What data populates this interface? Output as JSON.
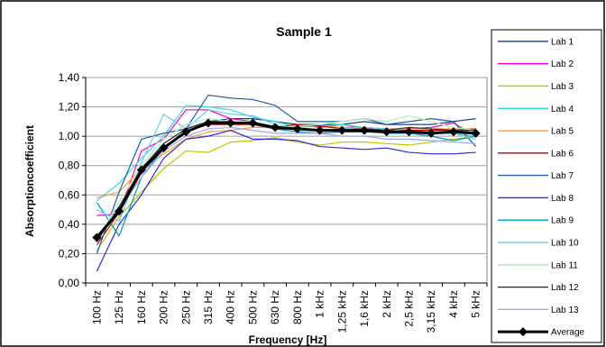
{
  "chart_data": {
    "type": "line",
    "title": "Sample 1",
    "xlabel": "Frequency [Hz]",
    "ylabel": "Absorptioncoefficient",
    "ylim": [
      0,
      1.4
    ],
    "yticks": [
      "0,00",
      "0,20",
      "0,40",
      "0,60",
      "0,80",
      "1,00",
      "1,20",
      "1,40"
    ],
    "grid": true,
    "legend_position": "right",
    "categories": [
      "100 Hz",
      "125 Hz",
      "160 Hz",
      "200 Hz",
      "250 Hz",
      "315 Hz",
      "400 Hz",
      "500 Hz",
      "630 Hz",
      "800 Hz",
      "1 kHz",
      "1,25 kHz",
      "1,6 kHz",
      "2 kHz",
      "2,5 kHz",
      "3,15 kHz",
      "4 kHz",
      "5 kHz"
    ],
    "series": [
      {
        "name": "Lab 1",
        "color": "#1f3c88",
        "values": [
          0.3,
          0.5,
          0.75,
          0.95,
          1.05,
          1.1,
          1.12,
          1.12,
          1.1,
          1.08,
          1.08,
          1.08,
          1.1,
          1.08,
          1.08,
          1.08,
          1.1,
          1.12
        ]
      },
      {
        "name": "Lab 2",
        "color": "#ff00cc",
        "values": [
          0.46,
          0.47,
          0.9,
          0.98,
          1.18,
          1.18,
          1.12,
          1.1,
          1.05,
          1.08,
          1.06,
          1.08,
          1.05,
          1.05,
          1.05,
          1.06,
          1.09,
          1.0
        ]
      },
      {
        "name": "Lab 3",
        "color": "#bcc400",
        "values": [
          0.22,
          0.45,
          0.62,
          0.78,
          0.9,
          0.89,
          0.96,
          0.97,
          0.99,
          0.96,
          0.94,
          0.96,
          0.96,
          0.95,
          0.94,
          0.96,
          0.98,
          1.0
        ]
      },
      {
        "name": "Lab 4",
        "color": "#33dddd",
        "values": [
          0.56,
          0.68,
          0.85,
          1.0,
          1.21,
          1.2,
          1.18,
          1.13,
          1.1,
          1.06,
          1.07,
          1.08,
          1.06,
          1.05,
          1.04,
          1.03,
          1.02,
          1.0
        ]
      },
      {
        "name": "Lab 5",
        "color": "#ff9933",
        "values": [
          0.58,
          0.62,
          0.78,
          0.88,
          0.98,
          1.03,
          1.04,
          1.06,
          1.06,
          1.07,
          1.07,
          1.06,
          1.06,
          1.05,
          1.05,
          1.05,
          1.05,
          1.05
        ]
      },
      {
        "name": "Lab 6",
        "color": "#c00000",
        "values": [
          0.26,
          0.48,
          0.75,
          0.92,
          1.03,
          1.08,
          1.08,
          1.08,
          1.06,
          1.08,
          1.07,
          1.05,
          1.05,
          1.04,
          1.04,
          1.04,
          1.04,
          1.05
        ]
      },
      {
        "name": "Lab 7",
        "color": "#1f5fa0",
        "values": [
          0.2,
          0.62,
          0.98,
          1.02,
          1.05,
          1.28,
          1.26,
          1.25,
          1.21,
          1.1,
          1.1,
          1.1,
          1.12,
          1.08,
          1.1,
          1.12,
          1.1,
          0.93
        ]
      },
      {
        "name": "Lab 8",
        "color": "#2b2bd6",
        "values": [
          0.08,
          0.4,
          0.6,
          0.85,
          0.98,
          1.0,
          1.04,
          0.98,
          0.98,
          0.97,
          0.93,
          0.92,
          0.91,
          0.92,
          0.89,
          0.88,
          0.88,
          0.89
        ]
      },
      {
        "name": "Lab 9",
        "color": "#0099cc",
        "values": [
          0.55,
          0.32,
          0.72,
          0.92,
          1.03,
          1.1,
          1.08,
          1.1,
          1.05,
          1.03,
          1.02,
          1.03,
          1.03,
          1.02,
          1.02,
          1.0,
          0.97,
          1.0
        ]
      },
      {
        "name": "Lab 10",
        "color": "#66ccee",
        "values": [
          0.5,
          0.42,
          0.82,
          1.15,
          1.05,
          1.18,
          1.15,
          1.14,
          1.08,
          1.05,
          1.04,
          1.05,
          1.06,
          1.05,
          1.03,
          1.02,
          1.02,
          0.98
        ]
      },
      {
        "name": "Lab 11",
        "color": "#b3f0b3",
        "values": [
          0.3,
          0.55,
          0.8,
          0.98,
          1.08,
          1.12,
          1.1,
          1.1,
          1.06,
          1.07,
          1.08,
          1.1,
          1.12,
          1.1,
          1.14,
          1.1,
          1.06,
          1.04
        ]
      },
      {
        "name": "Lab 12",
        "color": "#333333",
        "values": [
          0.28,
          0.52,
          0.78,
          0.95,
          1.05,
          1.1,
          1.1,
          1.08,
          1.05,
          1.05,
          1.04,
          1.03,
          1.03,
          1.04,
          1.06,
          1.05,
          1.04,
          1.04
        ]
      },
      {
        "name": "Lab 13",
        "color": "#99aaee",
        "values": [
          0.32,
          0.5,
          0.72,
          0.9,
          1.0,
          1.05,
          1.06,
          1.04,
          1.02,
          1.02,
          1.02,
          1.0,
          1.0,
          0.98,
          0.98,
          0.97,
          0.96,
          0.95
        ]
      },
      {
        "name": "Average",
        "color": "#000000",
        "values": [
          0.31,
          0.49,
          0.77,
          0.92,
          1.03,
          1.09,
          1.09,
          1.09,
          1.06,
          1.05,
          1.04,
          1.04,
          1.04,
          1.03,
          1.03,
          1.02,
          1.03,
          1.02
        ]
      }
    ]
  }
}
